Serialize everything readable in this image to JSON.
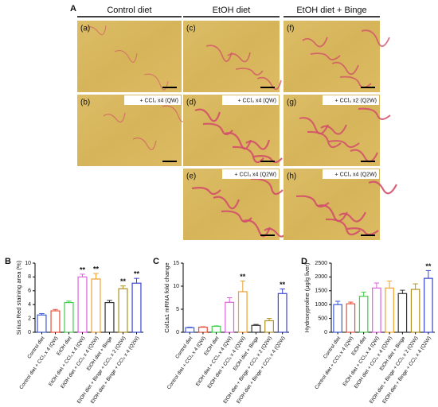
{
  "figure": {
    "panel_a_label": "A",
    "columns": [
      "Control diet",
      "EtOH diet",
      "EtOH diet + Binge"
    ],
    "image_panels": [
      {
        "label": "(a)"
      },
      {
        "label": "(b)",
        "caption": "+ CCl₄ x4 (QW)"
      },
      {
        "label": "(c)"
      },
      {
        "label": "(d)",
        "caption": "+ CCl₄ x4 (QW)"
      },
      {
        "label": "(e)",
        "caption": "+ CCl₄ x4 (Q2W)"
      },
      {
        "label": "(f)"
      },
      {
        "label": "(g)",
        "caption": "+ CCl₄ x2 (Q2W)"
      },
      {
        "label": "(h)",
        "caption": "+ CCl₄ x4 (Q2W)"
      }
    ]
  },
  "chart_data": [
    {
      "type": "bar",
      "panel": "B",
      "y_label": "Sirius Red staining area (%)",
      "categories": [
        "Control diet",
        "Control diet + CCl₄ x 4 (QW)",
        "EtOH diet",
        "EtOH diet + CCl₄ x 4 (QW)",
        "EtOH diet + CCl₄ x 4 (Q2W)",
        "EtOH diet + Binge",
        "EtOH diet + Binge + CCl₄ x 2 (Q2W)",
        "EtOH diet + Binge + CCl₄ x 4 (Q2W)"
      ],
      "values": [
        2.5,
        3.1,
        4.3,
        8.0,
        7.7,
        4.3,
        6.3,
        7.1
      ],
      "errors": [
        0.2,
        0.2,
        0.2,
        0.4,
        0.8,
        0.3,
        0.4,
        0.7
      ],
      "significance": [
        null,
        null,
        null,
        "**",
        "**",
        null,
        "**",
        "**"
      ],
      "colors": [
        "#3b5bdb",
        "#e8503a",
        "#3fcf4a",
        "#e060e0",
        "#f0a030",
        "#333333",
        "#b09020",
        "#3a46d0"
      ],
      "ylim": [
        0,
        10
      ],
      "yticks": [
        0,
        2,
        4,
        6,
        8,
        10
      ]
    },
    {
      "type": "bar",
      "panel": "C",
      "y_label": "Col1a1 mRNA fold change",
      "categories": [
        "Control diet",
        "Control diet + CCl₄ x 4 (QW)",
        "EtOH diet",
        "EtOH diet + CCl₄ x 4 (QW)",
        "EtOH diet + CCl₄ x 4 (Q2W)",
        "EtOH diet + Binge",
        "EtOH diet + Binge + CCl₄ x 2 (Q2W)",
        "EtOH diet + Binge + CCl₄ x 4 (Q2W)"
      ],
      "values": [
        1.0,
        1.1,
        1.3,
        6.5,
        8.8,
        1.5,
        2.5,
        8.4
      ],
      "errors": [
        0.1,
        0.1,
        0.1,
        1.0,
        2.3,
        0.2,
        0.5,
        1.0
      ],
      "significance": [
        null,
        null,
        null,
        null,
        "**",
        null,
        null,
        "**"
      ],
      "colors": [
        "#3b5bdb",
        "#e8503a",
        "#3fcf4a",
        "#e060e0",
        "#f0a030",
        "#333333",
        "#b09020",
        "#3a46d0"
      ],
      "ylim": [
        0,
        15
      ],
      "yticks": [
        0,
        5,
        10,
        15
      ]
    },
    {
      "type": "bar",
      "panel": "D",
      "y_label": "Hydroxyproline (μg/g liver)",
      "categories": [
        "Control diet",
        "Control diet + CCl₄ x 4 (QW)",
        "EtOH diet",
        "EtOH diet + CCl₄ x 4 (QW)",
        "EtOH diet + CCl₄ x 4 (Q2W)",
        "EtOH diet + Binge",
        "EtOH diet + Binge + CCl₄ x 2 (Q2W)",
        "EtOH diet + Binge + CCl₄ x 4 (Q2W)"
      ],
      "values": [
        1000,
        1030,
        1300,
        1600,
        1600,
        1400,
        1550,
        1950
      ],
      "errors": [
        120,
        60,
        150,
        180,
        250,
        120,
        200,
        280
      ],
      "significance": [
        null,
        null,
        null,
        null,
        null,
        null,
        null,
        "**"
      ],
      "colors": [
        "#3b5bdb",
        "#e8503a",
        "#3fcf4a",
        "#e060e0",
        "#f0a030",
        "#333333",
        "#b09020",
        "#3a46d0"
      ],
      "ylim": [
        0,
        2500
      ],
      "yticks": [
        0,
        500,
        1000,
        1500,
        2000,
        2500
      ]
    }
  ]
}
